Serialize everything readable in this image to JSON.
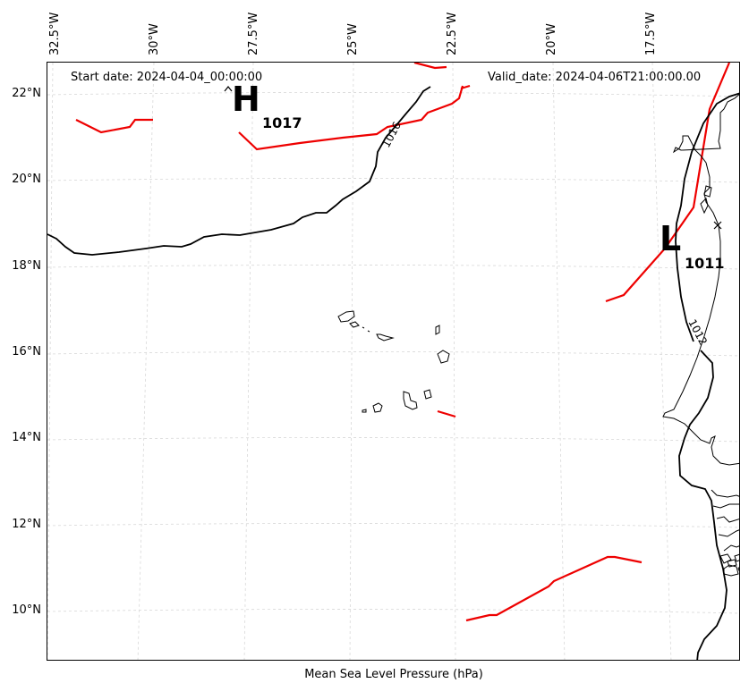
{
  "header": {
    "start_date": "Start date: 2024-04-04_00:00:00",
    "valid_date": "Valid_date: 2024-04-06T21:00:00.00"
  },
  "xlabel": "Mean Sea Level Pressure (hPa)",
  "lon_labels": [
    "32.5°W",
    "30°W",
    "27.5°W",
    "25°W",
    "22.5°W",
    "20°W",
    "17.5°W"
  ],
  "lat_labels": [
    "22°N",
    "20°N",
    "18°N",
    "16°N",
    "14°N",
    "12°N",
    "10°N"
  ],
  "pressure_centers": {
    "high": {
      "symbol": "H",
      "value": "1017",
      "lon": -27.1,
      "lat": 21.6
    },
    "low": {
      "symbol": "L",
      "value": "1011",
      "lon": -17.5,
      "lat": 18.5
    }
  },
  "isobar_labels": [
    "1016",
    "1012"
  ],
  "colors": {
    "isobar": "#000000",
    "front": "#ee0000",
    "grid": "#cccccc"
  }
}
